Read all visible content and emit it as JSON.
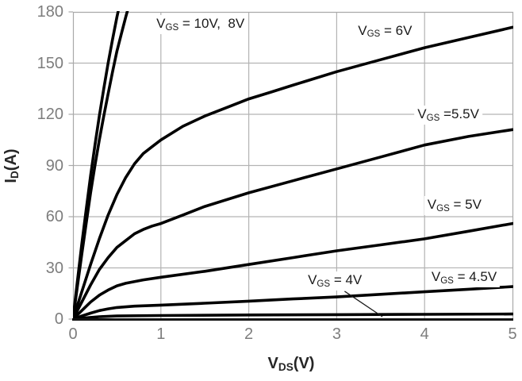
{
  "chart_data": {
    "type": "line",
    "title": "",
    "xlabel": {
      "main": "V",
      "sub": "DS",
      "rest": "(V)"
    },
    "ylabel": {
      "main": "I",
      "sub": "D",
      "rest": "(A)"
    },
    "x_axis": {
      "min": 0,
      "max": 5,
      "ticks": [
        0,
        1,
        2,
        3,
        4,
        5
      ]
    },
    "y_axis": {
      "min": 0,
      "max": 180,
      "ticks": [
        0,
        30,
        60,
        90,
        120,
        150,
        180
      ]
    },
    "grid": true,
    "legend": "none (curves labeled with inline annotations)",
    "colors": {
      "curve": "#000000",
      "grid": "#b3b3b3",
      "border": "#a9a9a9",
      "axis": "#111111",
      "tick_label": "#7d7d7d",
      "annotation_text": "#1a1a1a",
      "background": "#ffffff"
    },
    "series": [
      {
        "name": "VGS = 10V",
        "vgs": 10,
        "points": [
          [
            0,
            0
          ],
          [
            0.05,
            22
          ],
          [
            0.1,
            44
          ],
          [
            0.15,
            64
          ],
          [
            0.2,
            84
          ],
          [
            0.25,
            102
          ],
          [
            0.3,
            119
          ],
          [
            0.35,
            135
          ],
          [
            0.4,
            150
          ],
          [
            0.45,
            164
          ],
          [
            0.5,
            177
          ],
          [
            0.56,
            191
          ]
        ]
      },
      {
        "name": "VGS = 8V",
        "vgs": 8,
        "points": [
          [
            0,
            0
          ],
          [
            0.05,
            19
          ],
          [
            0.1,
            38
          ],
          [
            0.15,
            56
          ],
          [
            0.2,
            74
          ],
          [
            0.25,
            90
          ],
          [
            0.3,
            105
          ],
          [
            0.35,
            119
          ],
          [
            0.4,
            132
          ],
          [
            0.45,
            145
          ],
          [
            0.5,
            157
          ],
          [
            0.55,
            167
          ],
          [
            0.6,
            177
          ],
          [
            0.66,
            188
          ]
        ]
      },
      {
        "name": "VGS = 6V",
        "vgs": 6,
        "points": [
          [
            0,
            0
          ],
          [
            0.1,
            16
          ],
          [
            0.2,
            32
          ],
          [
            0.3,
            47
          ],
          [
            0.4,
            61
          ],
          [
            0.5,
            73
          ],
          [
            0.6,
            83
          ],
          [
            0.7,
            91
          ],
          [
            0.8,
            97
          ],
          [
            0.9,
            101
          ],
          [
            1,
            105
          ],
          [
            1.25,
            113
          ],
          [
            1.5,
            119
          ],
          [
            1.75,
            124
          ],
          [
            2,
            129
          ],
          [
            2.25,
            133
          ],
          [
            2.5,
            137
          ],
          [
            3,
            145
          ],
          [
            3.5,
            152
          ],
          [
            4,
            159
          ],
          [
            4.5,
            165
          ],
          [
            5,
            171
          ]
        ]
      },
      {
        "name": "VGS = 5.5V",
        "vgs": 5.5,
        "points": [
          [
            0,
            0
          ],
          [
            0.1,
            10
          ],
          [
            0.2,
            20
          ],
          [
            0.3,
            29
          ],
          [
            0.4,
            36
          ],
          [
            0.5,
            42
          ],
          [
            0.6,
            46
          ],
          [
            0.7,
            50
          ],
          [
            0.8,
            52.5
          ],
          [
            0.9,
            54.5
          ],
          [
            1,
            56
          ],
          [
            1.25,
            61
          ],
          [
            1.5,
            66
          ],
          [
            2,
            74
          ],
          [
            2.5,
            81
          ],
          [
            3,
            88
          ],
          [
            3.5,
            95
          ],
          [
            4,
            102
          ],
          [
            4.5,
            107
          ],
          [
            5,
            111
          ]
        ]
      },
      {
        "name": "VGS = 5V",
        "vgs": 5,
        "points": [
          [
            0,
            0
          ],
          [
            0.1,
            5
          ],
          [
            0.2,
            10
          ],
          [
            0.3,
            14
          ],
          [
            0.4,
            17
          ],
          [
            0.5,
            19.5
          ],
          [
            0.6,
            21
          ],
          [
            0.8,
            23
          ],
          [
            1,
            24.5
          ],
          [
            1.5,
            28
          ],
          [
            2,
            32
          ],
          [
            2.5,
            36
          ],
          [
            3,
            40
          ],
          [
            3.5,
            43.5
          ],
          [
            4,
            47
          ],
          [
            4.5,
            51.5
          ],
          [
            5,
            56
          ]
        ]
      },
      {
        "name": "VGS = 4.5V",
        "vgs": 4.5,
        "points": [
          [
            0,
            0
          ],
          [
            0.1,
            1.8
          ],
          [
            0.2,
            3.5
          ],
          [
            0.3,
            5
          ],
          [
            0.4,
            6
          ],
          [
            0.5,
            6.8
          ],
          [
            0.7,
            7.6
          ],
          [
            1,
            8.2
          ],
          [
            1.5,
            9.3
          ],
          [
            2,
            10.5
          ],
          [
            2.5,
            11.8
          ],
          [
            3,
            13
          ],
          [
            3.5,
            14.5
          ],
          [
            4,
            16
          ],
          [
            4.5,
            17.5
          ],
          [
            5,
            19
          ]
        ]
      },
      {
        "name": "VGS = 4V",
        "vgs": 4,
        "points": [
          [
            0,
            0
          ],
          [
            0.1,
            0.5
          ],
          [
            0.2,
            1
          ],
          [
            0.3,
            1.4
          ],
          [
            0.5,
            1.8
          ],
          [
            1,
            2.1
          ],
          [
            2,
            2.4
          ],
          [
            3,
            2.6
          ],
          [
            4,
            2.8
          ],
          [
            5,
            3
          ]
        ]
      }
    ],
    "annotations": [
      {
        "name": "vgs-10v-8v",
        "main": "V",
        "sub": "GS",
        "rest": " = 10V,  8V",
        "at": [
          1.45,
          172.5
        ]
      },
      {
        "name": "vgs-6v",
        "main": "V",
        "sub": "GS",
        "rest": " = 6V",
        "at": [
          3.55,
          168.5
        ]
      },
      {
        "name": "vgs-5.5v",
        "main": "V",
        "sub": "GS",
        "rest": " =5.5V",
        "at": [
          4.27,
          119.5
        ]
      },
      {
        "name": "vgs-5v",
        "main": "V",
        "sub": "GS",
        "rest": " = 5V",
        "at": [
          4.34,
          66.5
        ]
      },
      {
        "name": "vgs-4.5v",
        "main": "V",
        "sub": "GS",
        "rest": " = 4.5V",
        "at": [
          4.45,
          24
        ]
      },
      {
        "name": "vgs-4v",
        "main": "V",
        "sub": "GS",
        "rest": " = 4V",
        "at": [
          2.98,
          22.3
        ],
        "leader": [
          [
            3.09,
            16.3
          ],
          [
            3.52,
            1.4
          ]
        ]
      }
    ]
  }
}
